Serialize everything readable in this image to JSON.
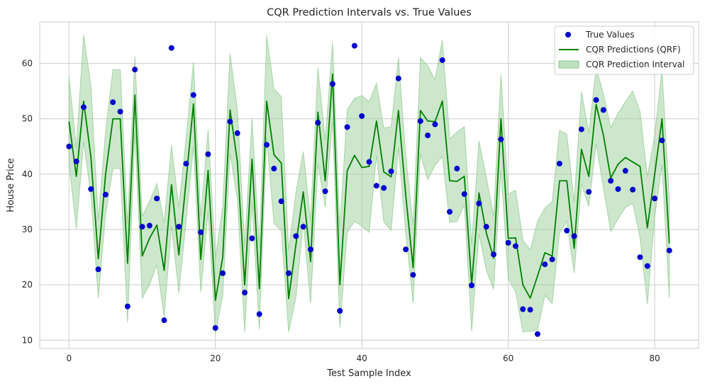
{
  "chart_data": {
    "type": "line",
    "title": "CQR Prediction Intervals vs. True Values",
    "xlabel": "Test Sample Index",
    "ylabel": "House Price",
    "xlim": [
      -4,
      86
    ],
    "ylim": [
      8.5,
      67.5
    ],
    "x_ticks": [
      0,
      20,
      40,
      60,
      80
    ],
    "y_ticks": [
      10,
      20,
      30,
      40,
      50,
      60
    ],
    "grid": true,
    "legend_position": "top-right",
    "colors": {
      "true_values": "#0000cc",
      "predictions": "#008000",
      "interval": "#a3d3a3",
      "grid": "#cccccc",
      "axes": "#cccccc"
    },
    "legend": [
      {
        "label": "True Values",
        "kind": "marker"
      },
      {
        "label": "CQR Predictions (QRF)",
        "kind": "line"
      },
      {
        "label": "CQR Prediction Interval",
        "kind": "patch"
      }
    ],
    "x": [
      0,
      1,
      2,
      3,
      4,
      5,
      6,
      7,
      8,
      9,
      10,
      11,
      12,
      13,
      14,
      15,
      16,
      17,
      18,
      19,
      20,
      21,
      22,
      23,
      24,
      25,
      26,
      27,
      28,
      29,
      30,
      31,
      32,
      33,
      34,
      35,
      36,
      37,
      38,
      39,
      40,
      41,
      42,
      43,
      44,
      45,
      46,
      47,
      48,
      49,
      50,
      51,
      52,
      53,
      54,
      55,
      56,
      57,
      58,
      59,
      60,
      61,
      62,
      63,
      64,
      65,
      66,
      67,
      68,
      69,
      70,
      71,
      72,
      73,
      74,
      75,
      76,
      77,
      78,
      79,
      80,
      81,
      82
    ],
    "series": [
      {
        "name": "True Values",
        "type": "scatter",
        "values": [
          45.0,
          42.3,
          52.1,
          37.3,
          22.8,
          36.3,
          53.0,
          51.3,
          16.1,
          58.9,
          30.5,
          30.7,
          35.6,
          13.6,
          62.8,
          30.5,
          41.9,
          54.3,
          29.5,
          43.6,
          12.2,
          22.1,
          49.5,
          47.4,
          18.6,
          28.4,
          14.7,
          45.3,
          41.0,
          35.1,
          22.1,
          28.8,
          30.5,
          26.4,
          49.3,
          36.9,
          56.3,
          15.3,
          48.5,
          63.2,
          50.5,
          42.2,
          37.9,
          37.5,
          40.5,
          57.3,
          26.4,
          21.8,
          49.6,
          47.0,
          49.0,
          60.6,
          33.2,
          41.0,
          36.4,
          19.9,
          34.7,
          30.5,
          25.5,
          46.3,
          27.6,
          27.0,
          15.6,
          15.5,
          11.1,
          23.7,
          24.6,
          41.9,
          29.8,
          28.8,
          48.1,
          36.8,
          53.4,
          51.6,
          38.8,
          37.3,
          40.6,
          37.2,
          25.0,
          23.4,
          35.6,
          46.1,
          26.2
        ]
      },
      {
        "name": "CQR Predictions (QRF)",
        "type": "line",
        "values": [
          49.5,
          39.6,
          53.2,
          43.0,
          24.7,
          40.0,
          50.0,
          50.0,
          23.9,
          54.3,
          25.2,
          28.4,
          30.8,
          22.6,
          38.1,
          25.4,
          38.9,
          52.7,
          24.6,
          40.7,
          17.2,
          25.0,
          51.6,
          42.2,
          20.0,
          42.7,
          19.3,
          53.2,
          43.5,
          42.0,
          17.5,
          27.3,
          36.8,
          24.2,
          51.2,
          38.8,
          58.1,
          20.0,
          40.6,
          43.4,
          41.2,
          41.4,
          49.6,
          40.4,
          39.5,
          51.5,
          36.1,
          23.1,
          51.5,
          49.6,
          49.5,
          53.2,
          38.8,
          38.7,
          39.6,
          20.0,
          36.6,
          29.4,
          24.8,
          50.0,
          28.4,
          28.5,
          20.0,
          17.6,
          21.6,
          25.8,
          25.2,
          38.8,
          38.8,
          26.6,
          44.5,
          39.6,
          52.6,
          47.0,
          39.3,
          41.8,
          43.0,
          42.2,
          41.4,
          30.3,
          40.0,
          50.0,
          27.5
        ]
      }
    ],
    "interval": {
      "name": "CQR Prediction Interval",
      "lower": [
        42.0,
        30.1,
        45.9,
        36.1,
        17.6,
        32.8,
        41.0,
        41.0,
        13.2,
        47.5,
        17.6,
        20.0,
        23.6,
        14.2,
        30.7,
        18.5,
        31.6,
        45.1,
        18.7,
        33.3,
        11.2,
        18.0,
        43.8,
        35.3,
        11.5,
        35.0,
        11.9,
        46.6,
        31.1,
        29.8,
        11.5,
        17.7,
        31.4,
        16.7,
        41.9,
        34.0,
        49.6,
        12.2,
        29.4,
        31.5,
        30.6,
        29.5,
        43.4,
        31.4,
        29.8,
        44.9,
        29.3,
        16.7,
        43.6,
        39.0,
        41.6,
        43.2,
        31.3,
        31.4,
        34.5,
        11.6,
        29.2,
        22.6,
        19.2,
        40.7,
        21.1,
        18.7,
        11.5,
        11.6,
        11.8,
        18.1,
        16.6,
        29.4,
        31.5,
        22.1,
        38.2,
        34.2,
        45.5,
        37.5,
        29.6,
        31.9,
        34.0,
        34.7,
        28.5,
        16.5,
        32.3,
        41.6,
        17.6
      ],
      "upper": [
        57.6,
        44.7,
        65.2,
        55.8,
        31.7,
        47.8,
        58.9,
        58.9,
        30.9,
        61.3,
        32.4,
        35.1,
        38.3,
        31.2,
        45.2,
        34.1,
        46.5,
        60.3,
        32.3,
        48.0,
        24.8,
        34.3,
        61.7,
        51.7,
        27.1,
        50.1,
        26.7,
        65.0,
        55.4,
        54.0,
        26.2,
        36.7,
        44.1,
        31.5,
        59.2,
        46.1,
        63.8,
        30.3,
        51.6,
        53.7,
        54.2,
        53.1,
        56.4,
        48.3,
        48.6,
        61.0,
        43.3,
        30.8,
        61.0,
        59.6,
        57.1,
        64.2,
        46.4,
        47.6,
        48.6,
        27.3,
        46.0,
        39.5,
        32.4,
        58.0,
        36.4,
        37.1,
        28.1,
        26.3,
        31.5,
        33.9,
        35.0,
        47.9,
        47.2,
        35.0,
        54.9,
        47.5,
        59.2,
        54.5,
        48.4,
        51.0,
        53.1,
        55.0,
        51.3,
        39.5,
        47.1,
        58.9,
        35.6
      ]
    }
  }
}
